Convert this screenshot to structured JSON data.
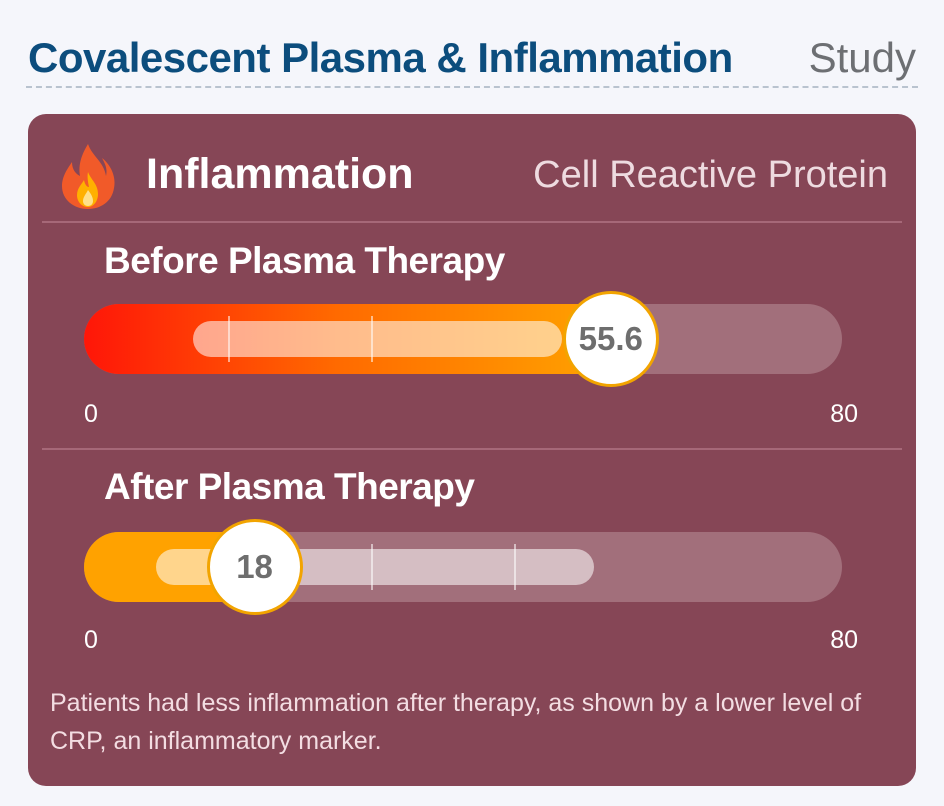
{
  "header": {
    "title": "Covalescent Plasma & Inflammation",
    "subtitle": "Study"
  },
  "card": {
    "icon": "fire-icon",
    "title": "Inflammation",
    "subtitle": "Cell Reactive Protein",
    "colors": {
      "card_bg": "#864656",
      "before_gradient": [
        "#ff1608",
        "#ff6a00",
        "#ffa300"
      ],
      "after_fill": "#ffa200",
      "marker_border": "#f2a400"
    },
    "gauges": [
      {
        "label": "Before Plasma Therapy",
        "value": 55.6,
        "display_value": "55.6",
        "min": 0,
        "max": 80,
        "min_label": "0",
        "max_label": "80",
        "normal_range": [
          11.5,
          50.5
        ],
        "ticks": [
          15.2,
          30.3
        ]
      },
      {
        "label": "After Plasma Therapy",
        "value": 18,
        "display_value": "18",
        "min": 0,
        "max": 80,
        "min_label": "0",
        "max_label": "80",
        "normal_range": [
          7.6,
          53.8
        ],
        "ticks": [
          30.3,
          45.4
        ]
      }
    ],
    "note": "Patients had less inflammation after therapy, as shown by a lower level of CRP, an inflammatory marker."
  }
}
